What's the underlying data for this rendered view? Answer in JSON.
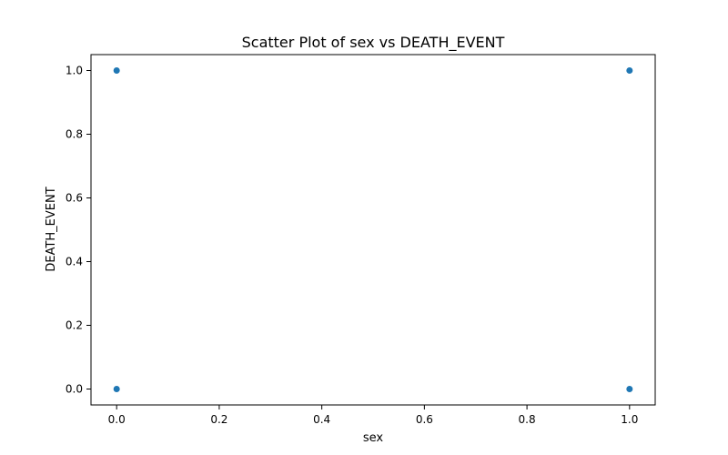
{
  "chart_data": {
    "type": "scatter",
    "title": "Scatter Plot of sex vs DEATH_EVENT",
    "xlabel": "sex",
    "ylabel": "DEATH_EVENT",
    "xlim": [
      -0.05,
      1.05
    ],
    "ylim": [
      -0.05,
      1.05
    ],
    "x_ticks": [
      0.0,
      0.2,
      0.4,
      0.6,
      0.8,
      1.0
    ],
    "y_ticks": [
      0.0,
      0.2,
      0.4,
      0.6,
      0.8,
      1.0
    ],
    "x_tick_labels": [
      "0.0",
      "0.2",
      "0.4",
      "0.6",
      "0.8",
      "1.0"
    ],
    "y_tick_labels": [
      "0.0",
      "0.2",
      "0.4",
      "0.6",
      "0.8",
      "1.0"
    ],
    "grid": false,
    "marker_color": "#1f77b4",
    "points": [
      {
        "x": 0,
        "y": 1
      },
      {
        "x": 0,
        "y": 0
      },
      {
        "x": 1,
        "y": 1
      },
      {
        "x": 1,
        "y": 0
      }
    ]
  }
}
